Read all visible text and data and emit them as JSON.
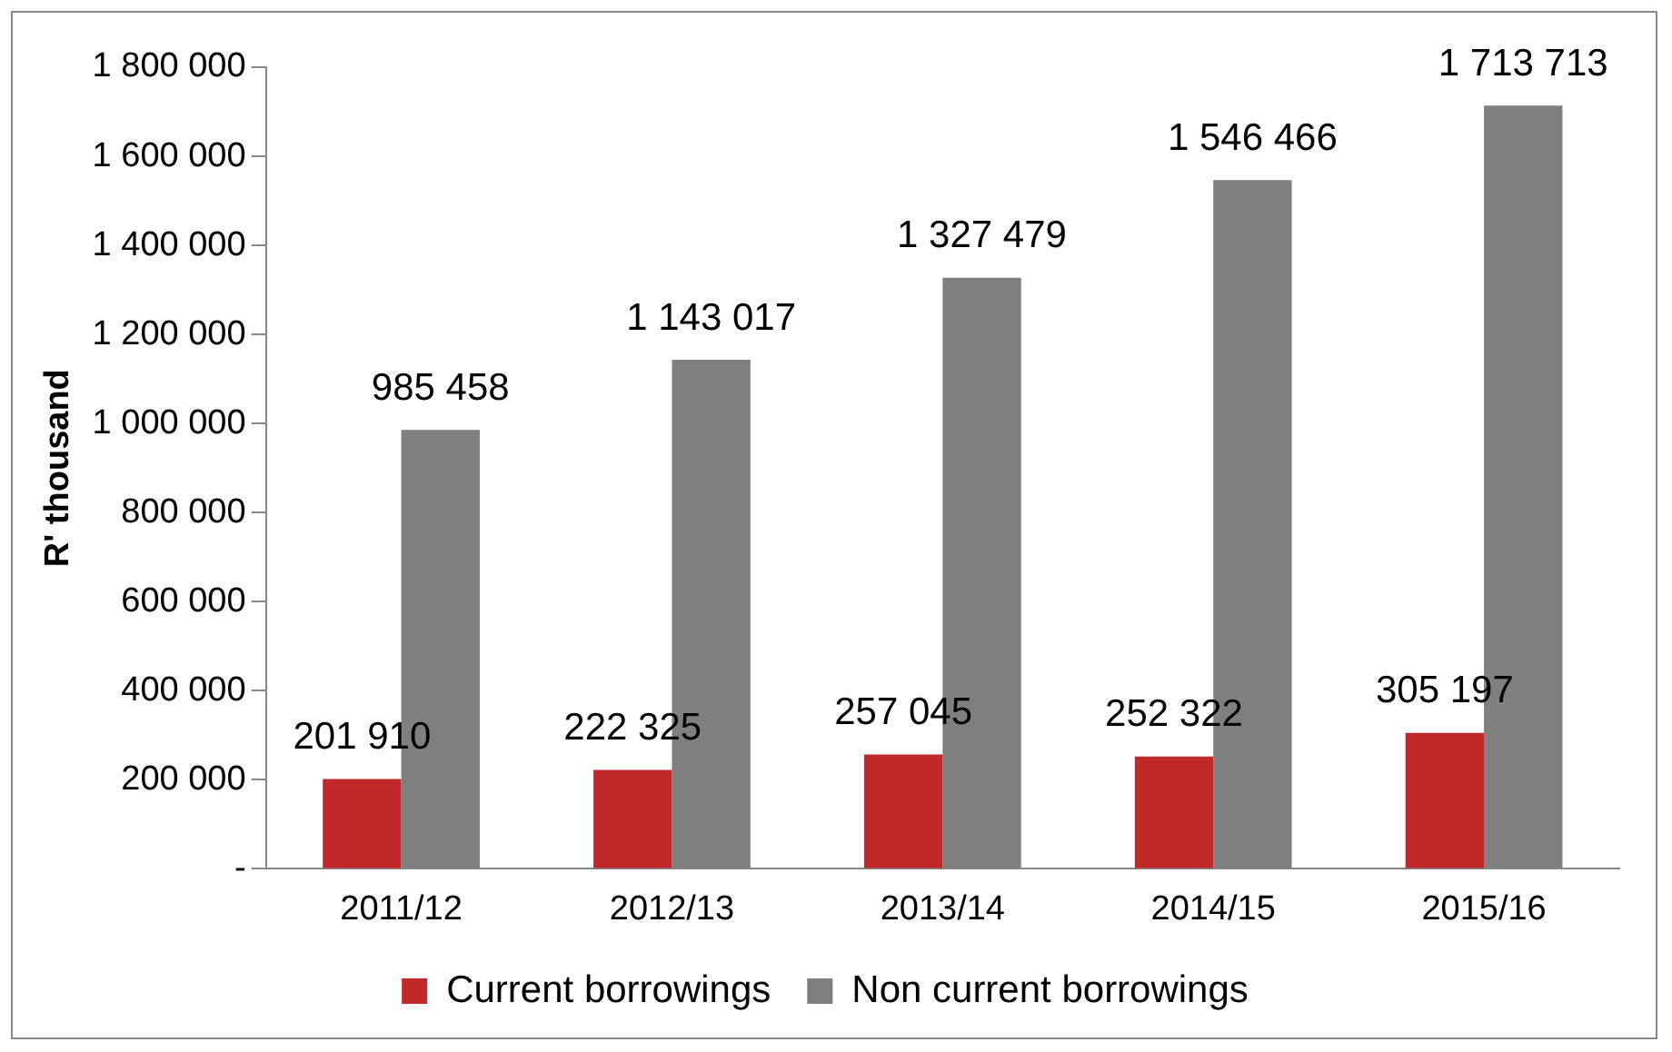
{
  "chart_data": {
    "type": "bar",
    "ylabel": "R' thousand",
    "categories": [
      "2011/12",
      "2012/13",
      "2013/14",
      "2014/15",
      "2015/16"
    ],
    "series": [
      {
        "name": "Current borrowings",
        "color": "#c0282a",
        "values": [
          201910,
          222325,
          257045,
          252322,
          305197
        ],
        "value_labels": [
          "201 910",
          "222 325",
          "257 045",
          "252 322",
          "305 197"
        ]
      },
      {
        "name": "Non current borrowings",
        "color": "#7f7f80",
        "values": [
          985458,
          1143017,
          1327479,
          1546466,
          1713713
        ],
        "value_labels": [
          "985 458",
          "1 143 017",
          "1 327 479",
          "1 546 466",
          "1 713 713"
        ]
      }
    ],
    "ylim": [
      0,
      1800000
    ],
    "yticks": [
      {
        "value": 0,
        "label": "-"
      },
      {
        "value": 200000,
        "label": "200 000"
      },
      {
        "value": 400000,
        "label": "400 000"
      },
      {
        "value": 600000,
        "label": "600 000"
      },
      {
        "value": 800000,
        "label": "800 000"
      },
      {
        "value": 1000000,
        "label": "1 000 000"
      },
      {
        "value": 1200000,
        "label": "1 200 000"
      },
      {
        "value": 1400000,
        "label": "1 400 000"
      },
      {
        "value": 1600000,
        "label": "1 600 000"
      },
      {
        "value": 1800000,
        "label": "1 800 000"
      }
    ],
    "grid": false,
    "legend": "bottom"
  }
}
